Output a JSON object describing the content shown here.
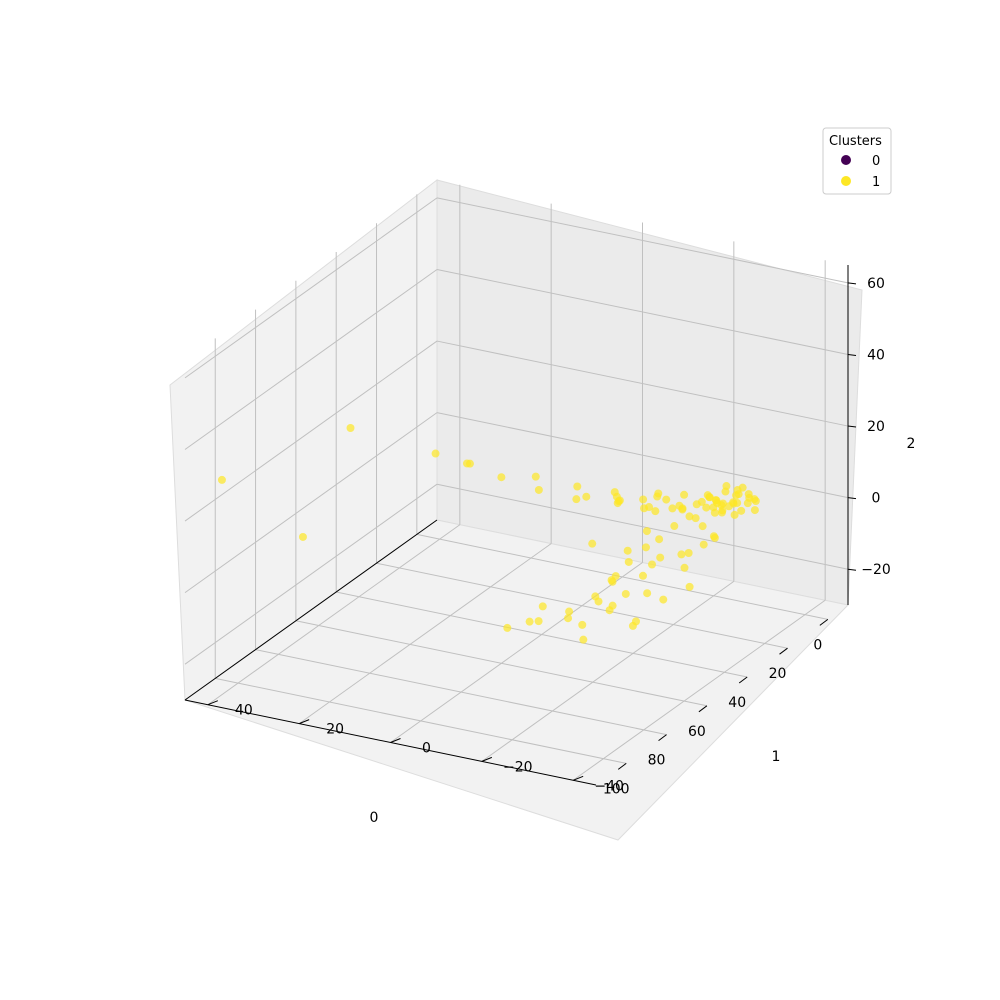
{
  "chart_data": {
    "type": "scatter",
    "projection": "3d",
    "title": "",
    "xlabel": "0",
    "ylabel": "1",
    "zlabel": "2",
    "x_ticks": [
      "0",
      "20",
      "40",
      "60",
      "80",
      "100"
    ],
    "y_ticks": [
      "−40",
      "−20",
      "0",
      "20",
      "40"
    ],
    "z_ticks": [
      "−20",
      "0",
      "20",
      "40",
      "60"
    ],
    "xlim": [
      -10,
      115
    ],
    "ylim": [
      -45,
      45
    ],
    "zlim": [
      -30,
      65
    ],
    "grid": true,
    "legend": {
      "title": "Clusters",
      "placement": "top-right",
      "entries": [
        {
          "label": "0",
          "color": "#440154"
        },
        {
          "label": "1",
          "color": "#fde725"
        }
      ]
    },
    "series": [
      {
        "name": "1",
        "color": "#fde725",
        "points": [
          [
            5,
            -30,
            2
          ],
          [
            7,
            -28,
            3
          ],
          [
            9,
            -26,
            1
          ],
          [
            6,
            -27,
            0
          ],
          [
            8,
            -29,
            4
          ],
          [
            10,
            -25,
            2
          ],
          [
            4,
            -31,
            1
          ],
          [
            11,
            -24,
            3
          ],
          [
            6,
            -26,
            -1
          ],
          [
            9,
            -30,
            0
          ],
          [
            12,
            -27,
            2
          ],
          [
            7,
            -32,
            3
          ],
          [
            5,
            -25,
            4
          ],
          [
            8,
            -24,
            1
          ],
          [
            10,
            -29,
            -1
          ],
          [
            13,
            -26,
            0
          ],
          [
            6,
            -29,
            5
          ],
          [
            9,
            -23,
            2
          ],
          [
            11,
            -30,
            3
          ],
          [
            7,
            -25,
            -2
          ],
          [
            14,
            -28,
            1
          ],
          [
            4,
            -27,
            3
          ],
          [
            12,
            -24,
            4
          ],
          [
            8,
            -31,
            2
          ],
          [
            10,
            -27,
            5
          ],
          [
            15,
            -25,
            2
          ],
          [
            3,
            -29,
            2
          ],
          [
            16,
            -27,
            3
          ],
          [
            9,
            -33,
            1
          ],
          [
            13,
            -30,
            4
          ],
          [
            18,
            -24,
            0
          ],
          [
            20,
            -22,
            3
          ],
          [
            22,
            -26,
            6
          ],
          [
            17,
            -20,
            2
          ],
          [
            25,
            -22,
            5
          ],
          [
            24,
            -28,
            8
          ],
          [
            19,
            -18,
            4
          ],
          [
            28,
            -20,
            9
          ],
          [
            21,
            -30,
            7
          ],
          [
            30,
            -18,
            6
          ],
          [
            26,
            -25,
            10
          ],
          [
            23,
            -16,
            3
          ],
          [
            32,
            -22,
            12
          ],
          [
            35,
            -20,
            11
          ],
          [
            34,
            -14,
            8
          ],
          [
            40,
            -16,
            14
          ],
          [
            38,
            -24,
            10
          ],
          [
            29,
            -12,
            6
          ],
          [
            45,
            -10,
            16
          ],
          [
            42,
            -18,
            13
          ],
          [
            50,
            -12,
            15
          ],
          [
            36,
            -8,
            9
          ],
          [
            55,
            -6,
            18
          ],
          [
            48,
            -20,
            17
          ],
          [
            60,
            0,
            22
          ],
          [
            52,
            -4,
            20
          ],
          [
            62,
            6,
            25
          ],
          [
            70,
            10,
            30
          ],
          [
            68,
            4,
            28
          ],
          [
            85,
            22,
            40
          ],
          [
            108,
            40,
            30
          ],
          [
            95,
            28,
            12
          ],
          [
            12,
            -20,
            -3
          ],
          [
            15,
            -18,
            -5
          ],
          [
            10,
            -22,
            -6
          ],
          [
            18,
            -16,
            -8
          ],
          [
            14,
            -24,
            -9
          ],
          [
            20,
            -14,
            -10
          ],
          [
            16,
            -20,
            -12
          ],
          [
            22,
            -18,
            -11
          ],
          [
            13,
            -26,
            -7
          ],
          [
            24,
            -12,
            -13
          ],
          [
            19,
            -22,
            -14
          ],
          [
            26,
            -16,
            -15
          ],
          [
            17,
            -14,
            -16
          ],
          [
            28,
            -10,
            -17
          ],
          [
            21,
            -24,
            -18
          ],
          [
            30,
            -14,
            -19
          ],
          [
            23,
            -8,
            -20
          ],
          [
            25,
            -20,
            -21
          ],
          [
            32,
            -12,
            -22
          ],
          [
            27,
            -6,
            -23
          ],
          [
            34,
            -18,
            -24
          ],
          [
            29,
            -10,
            -25
          ],
          [
            36,
            -4,
            -26
          ],
          [
            31,
            -16,
            -27
          ],
          [
            38,
            -8,
            -26
          ],
          [
            20,
            -10,
            -12
          ],
          [
            15,
            -12,
            -8
          ],
          [
            33,
            -20,
            -16
          ],
          [
            40,
            -6,
            -22
          ],
          [
            42,
            -10,
            -28
          ],
          [
            18,
            -28,
            -4
          ],
          [
            26,
            -26,
            -6
          ],
          [
            11,
            -18,
            -2
          ],
          [
            35,
            -14,
            -12
          ],
          [
            24,
            -4,
            -10
          ],
          [
            44,
            -2,
            -20
          ],
          [
            46,
            0,
            -24
          ],
          [
            39,
            -12,
            -18
          ],
          [
            37,
            2,
            -28
          ],
          [
            48,
            4,
            -26
          ]
        ]
      }
    ]
  }
}
